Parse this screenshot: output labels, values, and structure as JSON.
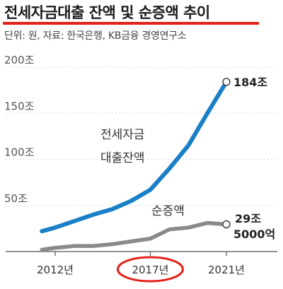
{
  "title": "전세자금대출 잔액 및 순증액 추이",
  "subtitle": "단위: 원, 자료: 한국은행, KB금융 경영연구소",
  "chart_data": {
    "type": "line",
    "x": [
      2011.3,
      2012,
      2013,
      2014,
      2015,
      2016,
      2017,
      2018,
      2019,
      2020,
      2021
    ],
    "series": [
      {
        "name": "전세자금 대출잔액",
        "color": "#1a7fc6",
        "values": [
          22,
          26,
          33,
          40,
          46,
          55,
          67,
          90,
          115,
          150,
          184
        ]
      },
      {
        "name": "순증액",
        "color": "#8a8a8a",
        "values": [
          2,
          4,
          6,
          6,
          8,
          11,
          14,
          24,
          26,
          31,
          29.5
        ]
      }
    ],
    "yticks": [
      "200조",
      "150조",
      "100조",
      "50조"
    ],
    "ytick_values": [
      200,
      150,
      100,
      50
    ],
    "xticks": [
      "2012년",
      "2017년",
      "2021년"
    ],
    "xtick_values": [
      2012,
      2017,
      2021
    ],
    "ylim": [
      0,
      200
    ],
    "annotations": {
      "series1_label_line1": "전세자금",
      "series1_label_line2": "대출잔액",
      "series2_label": "순증액",
      "end1": "184조",
      "end2_line1": "29조",
      "end2_line2": "5000억"
    },
    "highlight_tick": "2017년",
    "highlight_color": "#e32119"
  }
}
